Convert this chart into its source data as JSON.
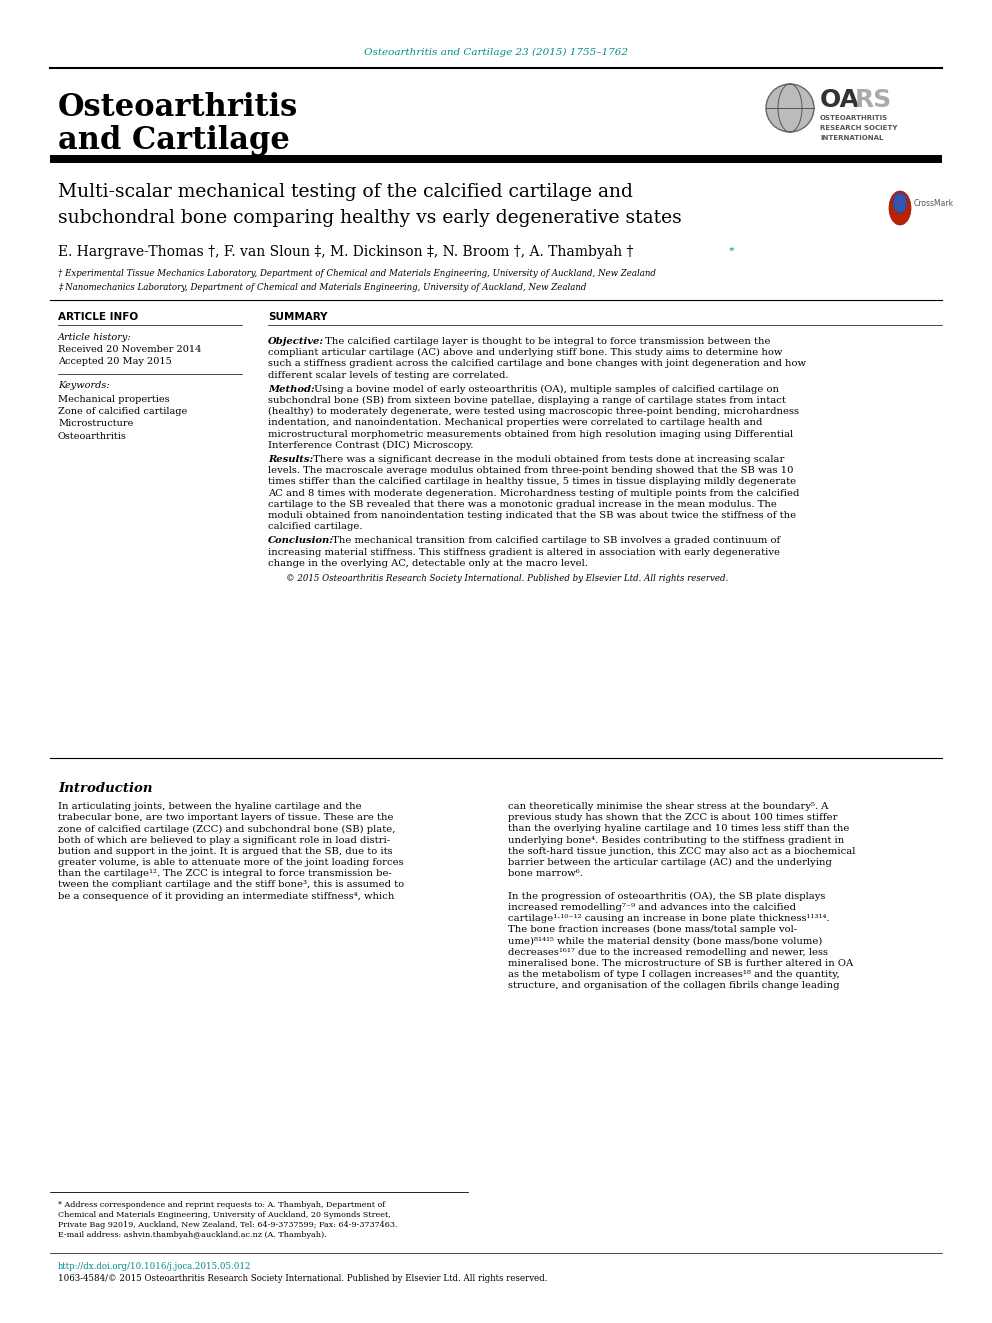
{
  "journal_header": "Osteoarthritis and Cartilage 23 (2015) 1755–1762",
  "journal_header_color": "#00AACC",
  "title_line1": "Multi-scalar mechanical testing of the calcified cartilage and",
  "title_line2": "subchondral bone comparing healthy vs early degenerative states",
  "authors": "E. Hargrave-Thomas †, F. van Sloun ‡, M. Dickinson ‡, N. Broom †, A. Thambyah †",
  "author_star": " *",
  "affil1": "† Experimental Tissue Mechanics Laboratory, Department of Chemical and Materials Engineering, University of Auckland, New Zealand",
  "affil2": "‡ Nanomechanics Laboratory, Department of Chemical and Materials Engineering, University of Auckland, New Zealand",
  "article_info_title": "ARTICLE INFO",
  "summary_title": "SUMMARY",
  "article_history_label": "Article history:",
  "received": "Received 20 November 2014",
  "accepted": "Accepted 20 May 2015",
  "keywords_label": "Keywords:",
  "keywords": [
    "Mechanical properties",
    "Zone of calcified cartilage",
    "Microstructure",
    "Osteoarthritis"
  ],
  "copyright_text": "© 2015 Osteoarthritis Research Society International. Published by Elsevier Ltd. All rights reserved.",
  "intro_title": "Introduction",
  "doi_text": "http://dx.doi.org/10.1016/j.joca.2015.05.012",
  "issn_text": "1063-4584/© 2015 Osteoarthritis Research Society International. Published by Elsevier Ltd. All rights reserved.",
  "bg_color": "#ffffff",
  "text_color": "#000000",
  "teal_color": "#008B8B"
}
